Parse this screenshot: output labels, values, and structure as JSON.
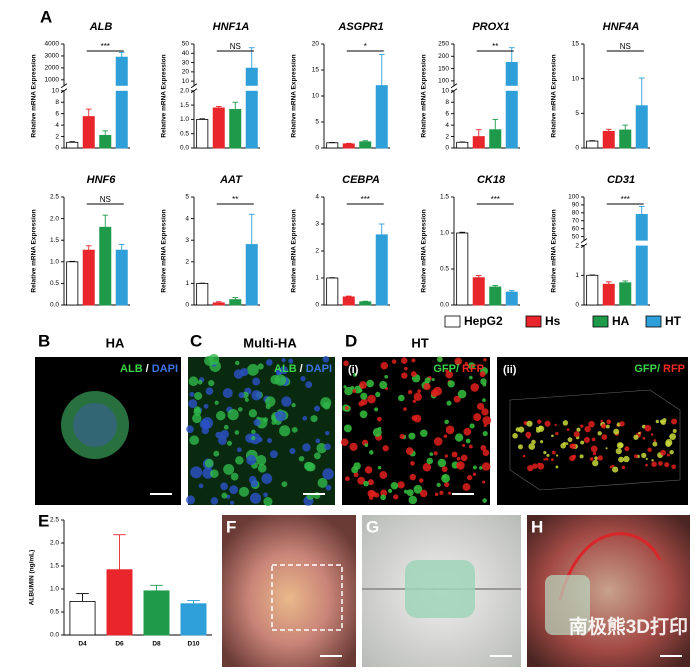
{
  "panel_labels": [
    "A",
    "B",
    "C",
    "D",
    "E",
    "F",
    "G",
    "H"
  ],
  "legend": [
    {
      "name": "HepG2",
      "color": "#ffffff"
    },
    {
      "name": "Hs",
      "color": "#e8262b"
    },
    {
      "name": "HA",
      "color": "#1f9a4b"
    },
    {
      "name": "HT",
      "color": "#2e9fd8"
    }
  ],
  "images": {
    "B": {
      "title": "HA",
      "stain": [
        "ALB",
        "/",
        "DAPI"
      ]
    },
    "C": {
      "title": "Multi-HA",
      "stain": [
        "ALB",
        "/",
        "DAPI"
      ]
    },
    "D": {
      "title": "HT",
      "sub": [
        "(i)",
        "(ii)"
      ],
      "stain": [
        "GFP/",
        "RFP"
      ]
    },
    "watermark": "南极熊3D打印"
  },
  "chart_data": [
    {
      "type": "bar",
      "title": "ALB",
      "ylabel": "Relative mRNA Expression",
      "values": [
        1,
        5.5,
        2.2,
        2900
      ],
      "errors": [
        0.1,
        1.3,
        0.8,
        400
      ],
      "colors": [
        "#ffffff",
        "#e8262b",
        "#1f9a4b",
        "#2e9fd8"
      ],
      "ylim": [
        0,
        4000
      ],
      "ybreak": [
        10,
        500
      ],
      "yticks": [
        0,
        2,
        4,
        6,
        8,
        10,
        1000,
        2000,
        3000,
        4000
      ],
      "significance": "***"
    },
    {
      "type": "bar",
      "title": "HNF1A",
      "ylabel": "Relative mRNA Expression",
      "values": [
        1,
        1.4,
        1.35,
        24
      ],
      "errors": [
        0.02,
        0.05,
        0.25,
        22
      ],
      "colors": [
        "#ffffff",
        "#e8262b",
        "#1f9a4b",
        "#2e9fd8"
      ],
      "ylim": [
        0,
        50
      ],
      "ybreak": [
        2,
        5
      ],
      "yticks": [
        {
          "value": 0,
          "label": "0.0"
        },
        {
          "value": 0.5,
          "label": "0.5"
        },
        {
          "value": 1,
          "label": "1.0"
        },
        {
          "value": 1.5,
          "label": "1.5"
        },
        {
          "value": 2,
          "label": "2.0"
        },
        10,
        20,
        30,
        40,
        50
      ],
      "significance": "NS"
    },
    {
      "type": "bar",
      "title": "ASGPR1",
      "ylabel": "Relative mRNA Expression",
      "values": [
        1,
        0.8,
        1.2,
        12
      ],
      "errors": [
        0.05,
        0.1,
        0.2,
        6
      ],
      "colors": [
        "#ffffff",
        "#e8262b",
        "#1f9a4b",
        "#2e9fd8"
      ],
      "ylim": [
        0,
        20
      ],
      "yticks": [
        0,
        5,
        10,
        15,
        20
      ],
      "significance": "*"
    },
    {
      "type": "bar",
      "title": "PROX1",
      "ylabel": "Relative mRNA Expression",
      "values": [
        1,
        2,
        3.2,
        175
      ],
      "errors": [
        0.05,
        1.2,
        1.8,
        60
      ],
      "colors": [
        "#ffffff",
        "#e8262b",
        "#1f9a4b",
        "#2e9fd8"
      ],
      "ylim": [
        0,
        250
      ],
      "ybreak": [
        10,
        80
      ],
      "yticks": [
        0,
        2,
        4,
        6,
        8,
        10,
        100,
        150,
        200,
        250
      ],
      "significance": "**"
    },
    {
      "type": "bar",
      "title": "HNF4A",
      "ylabel": "Relative mRNA Expression",
      "values": [
        1,
        2.4,
        2.6,
        6.1
      ],
      "errors": [
        0.05,
        0.3,
        0.7,
        4
      ],
      "colors": [
        "#ffffff",
        "#e8262b",
        "#1f9a4b",
        "#2e9fd8"
      ],
      "ylim": [
        0,
        15
      ],
      "yticks": [
        0,
        5,
        10,
        15
      ],
      "significance": "NS"
    },
    {
      "type": "bar",
      "title": "HNF6",
      "ylabel": "Relative mRNA Expression",
      "values": [
        1,
        1.27,
        1.8,
        1.27
      ],
      "errors": [
        0.01,
        0.1,
        0.28,
        0.13
      ],
      "colors": [
        "#ffffff",
        "#e8262b",
        "#1f9a4b",
        "#2e9fd8"
      ],
      "ylim": [
        0,
        2.5
      ],
      "yticks": [
        {
          "value": 0,
          "label": "0.0"
        },
        {
          "value": 0.5,
          "label": "0.5"
        },
        {
          "value": 1,
          "label": "1.0"
        },
        {
          "value": 1.5,
          "label": "1.5"
        },
        {
          "value": 2,
          "label": "2.0"
        },
        {
          "value": 2.5,
          "label": "2.5"
        }
      ],
      "significance": "NS"
    },
    {
      "type": "bar",
      "title": "AAT",
      "ylabel": "Relative mRNA Expression",
      "values": [
        1,
        0.1,
        0.25,
        2.8
      ],
      "errors": [
        0.01,
        0.05,
        0.1,
        1.4
      ],
      "colors": [
        "#ffffff",
        "#e8262b",
        "#1f9a4b",
        "#2e9fd8"
      ],
      "ylim": [
        0,
        5
      ],
      "yticks": [
        0,
        1,
        2,
        3,
        4,
        5
      ],
      "significance": "**"
    },
    {
      "type": "bar",
      "title": "CEBPA",
      "ylabel": "Relative mRNA Expression",
      "values": [
        1,
        0.3,
        0.12,
        2.6
      ],
      "errors": [
        0.01,
        0.03,
        0.02,
        0.4
      ],
      "colors": [
        "#ffffff",
        "#e8262b",
        "#1f9a4b",
        "#2e9fd8"
      ],
      "ylim": [
        0,
        4
      ],
      "yticks": [
        0,
        1,
        2,
        3,
        4
      ],
      "significance": "***"
    },
    {
      "type": "bar",
      "title": "CK18",
      "ylabel": "Relative mRNA Expression",
      "values": [
        1,
        0.38,
        0.25,
        0.18
      ],
      "errors": [
        0.01,
        0.03,
        0.02,
        0.02
      ],
      "colors": [
        "#ffffff",
        "#e8262b",
        "#1f9a4b",
        "#2e9fd8"
      ],
      "ylim": [
        0,
        1.5
      ],
      "yticks": [
        {
          "value": 0,
          "label": "0.0"
        },
        {
          "value": 0.5,
          "label": "0.5"
        },
        {
          "value": 1,
          "label": "1.0"
        },
        {
          "value": 1.5,
          "label": "1.5"
        }
      ],
      "significance": "***"
    },
    {
      "type": "bar",
      "title": "CD31",
      "ylabel": "Relative mRNA Expression",
      "values": [
        1,
        0.7,
        0.75,
        78
      ],
      "errors": [
        0.01,
        0.08,
        0.06,
        10
      ],
      "colors": [
        "#ffffff",
        "#e8262b",
        "#1f9a4b",
        "#2e9fd8"
      ],
      "ylim": [
        0,
        100
      ],
      "ybreak": [
        2,
        45
      ],
      "yticks": [
        0,
        1,
        2,
        50,
        60,
        70,
        80,
        90,
        100
      ],
      "significance": "***"
    },
    {
      "type": "bar",
      "ylabel": "ALBUMIN (ng/mL)",
      "categories": [
        "D4",
        "D6",
        "D8",
        "D10"
      ],
      "values": [
        0.73,
        1.42,
        0.96,
        0.68
      ],
      "errors": [
        0.17,
        0.76,
        0.12,
        0.07
      ],
      "colors": [
        "#ffffff",
        "#e8262b",
        "#1f9a4b",
        "#2e9fd8"
      ],
      "ylim": [
        0,
        2.5
      ],
      "yticks": [
        {
          "value": 0,
          "label": "0.0"
        },
        {
          "value": 0.5,
          "label": "0.5"
        },
        {
          "value": 1,
          "label": "1.0"
        },
        {
          "value": 1.5,
          "label": "1.5"
        },
        {
          "value": 2,
          "label": "2.0"
        },
        {
          "value": 2.5,
          "label": "2.5"
        }
      ]
    }
  ]
}
